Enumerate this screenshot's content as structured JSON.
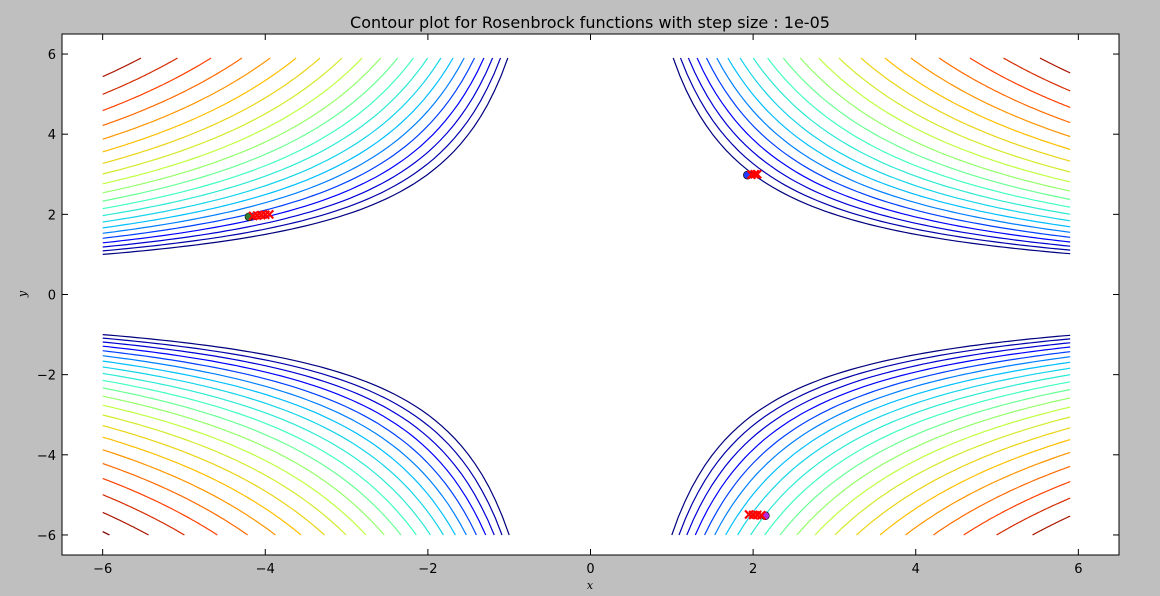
{
  "chart_data": {
    "type": "contour",
    "title": "Contour plot for Rosenbrock functions with step size : 1e-05",
    "xlabel": "x",
    "ylabel": "y",
    "xlim": [
      -6.5,
      6.5
    ],
    "ylim": [
      -6.5,
      6.5
    ],
    "xticks": [
      -6,
      -4,
      -2,
      0,
      2,
      4,
      6
    ],
    "yticks": [
      -6,
      -4,
      -2,
      0,
      2,
      4,
      6
    ],
    "grid": false,
    "contour_domain": {
      "x": [
        -6,
        5.9
      ],
      "y": [
        -6,
        5.9
      ]
    },
    "contour_levels": {
      "function_shape": "(x^2)*(y^2) style hyperbolic levels",
      "min_level": 6,
      "count": 22
    },
    "colormap": [
      "#00007f",
      "#0000ff",
      "#00bfff",
      "#40ffbf",
      "#bfff40",
      "#ffbf00",
      "#ff4000",
      "#7f0000"
    ],
    "series": [
      {
        "marker": "circle",
        "color": "#2e7d32",
        "points": [
          [
            -4.2,
            1.94
          ]
        ]
      },
      {
        "marker": "x",
        "color": "#ff0000",
        "points": [
          [
            -4.15,
            1.96
          ],
          [
            -4.1,
            1.97
          ],
          [
            -4.05,
            1.98
          ],
          [
            -4.0,
            1.99
          ],
          [
            -3.95,
            2.0
          ]
        ]
      },
      {
        "marker": "circle",
        "color": "#1f3cff",
        "points": [
          [
            1.93,
            2.98
          ]
        ]
      },
      {
        "marker": "x",
        "color": "#ff0000",
        "points": [
          [
            1.98,
            2.99
          ],
          [
            2.02,
            3.0
          ],
          [
            2.05,
            3.0
          ]
        ]
      },
      {
        "marker": "circle",
        "color": "#b02be0",
        "points": [
          [
            2.15,
            -5.52
          ]
        ]
      },
      {
        "marker": "x",
        "color": "#ff0000",
        "points": [
          [
            2.1,
            -5.51
          ],
          [
            2.05,
            -5.5
          ],
          [
            2.0,
            -5.5
          ],
          [
            1.95,
            -5.49
          ]
        ]
      }
    ]
  }
}
